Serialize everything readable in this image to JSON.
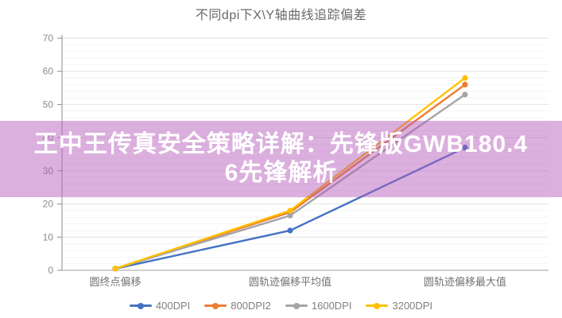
{
  "banner": {
    "lines": [
      "王中王传真安全策略详解：先锋版GWB180.4",
      "6先锋解析"
    ],
    "text_color": "#ffffff",
    "background_tint": "#B45AB9"
  },
  "chart_data": {
    "type": "line",
    "title": "不同dpi下X\\Y轴曲线追踪偏差",
    "categories": [
      "圆终点偏移",
      "圆轨迹偏移平均值",
      "圆轨迹偏移最大值"
    ],
    "series": [
      {
        "name": "400DPI",
        "color": "#4472C4",
        "values": [
          0.5,
          12,
          37
        ]
      },
      {
        "name": "800DPI2",
        "color": "#ED7D31",
        "values": [
          0.5,
          17.5,
          56
        ]
      },
      {
        "name": "1600DPI",
        "color": "#A5A5A5",
        "values": [
          0.5,
          16.5,
          53
        ]
      },
      {
        "name": "3200DPI",
        "color": "#FFC000",
        "values": [
          0.5,
          18,
          58
        ]
      }
    ],
    "xlabel": "",
    "ylabel": "",
    "ylim": [
      0,
      70
    ],
    "y_ticks": [
      0,
      10,
      20,
      30,
      40,
      50,
      60,
      70
    ],
    "y_minor_step": 2,
    "grid": true,
    "legend_position": "bottom",
    "marker": "circle"
  }
}
